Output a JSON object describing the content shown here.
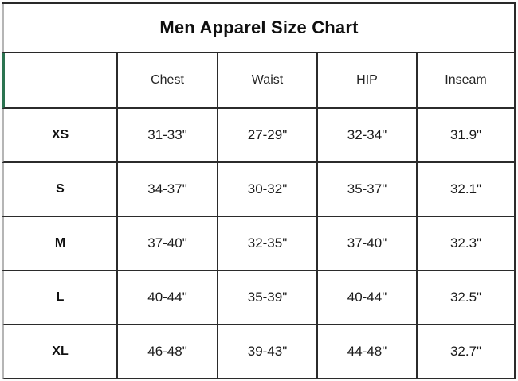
{
  "chart_data": {
    "type": "table",
    "title": "Men Apparel Size Chart",
    "columns": [
      "",
      "Chest",
      "Waist",
      "HIP",
      "Inseam"
    ],
    "rows": [
      [
        "XS",
        "31-33\"",
        "27-29\"",
        "32-34\"",
        "31.9\""
      ],
      [
        "S",
        "34-37\"",
        "30-32\"",
        "35-37\"",
        "32.1\""
      ],
      [
        "M",
        "37-40\"",
        "32-35\"",
        "37-40\"",
        "32.3\""
      ],
      [
        "L",
        "40-44\"",
        "35-39\"",
        "40-44\"",
        "32.5\""
      ],
      [
        "XL",
        "46-48\"",
        "39-43\"",
        "44-48\"",
        "32.7\""
      ]
    ],
    "units": "inches"
  },
  "colors": {
    "accent_green": "#2b7350",
    "grid_line": "#2b2b2b",
    "outer_left_border": "#b5b5b5",
    "cell_background": "#ffffff",
    "text": "#1b1b1b"
  }
}
